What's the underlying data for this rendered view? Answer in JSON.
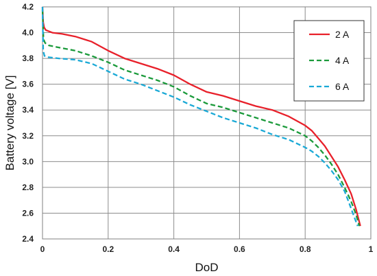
{
  "chart_data": {
    "type": "line",
    "xlabel": "DoD",
    "ylabel": "Battery voltage [V]",
    "xlim": [
      0,
      1
    ],
    "ylim": [
      2.4,
      4.2
    ],
    "x_ticks": [
      "0",
      "0.2",
      "0.4",
      "0.6",
      "0.8",
      "1"
    ],
    "y_ticks": [
      "2.4",
      "2.6",
      "2.8",
      "3.0",
      "3.2",
      "3.4",
      "3.6",
      "3.8",
      "4.0",
      "4.2"
    ],
    "grid": true,
    "legend_position": "top-right",
    "series": [
      {
        "name": "2 A",
        "color": "#e8202a",
        "dash": "solid",
        "points": [
          [
            0.0,
            4.2
          ],
          [
            0.002,
            4.08
          ],
          [
            0.005,
            4.04
          ],
          [
            0.01,
            4.02
          ],
          [
            0.03,
            4.0
          ],
          [
            0.06,
            3.99
          ],
          [
            0.1,
            3.97
          ],
          [
            0.15,
            3.93
          ],
          [
            0.2,
            3.86
          ],
          [
            0.25,
            3.8
          ],
          [
            0.3,
            3.76
          ],
          [
            0.35,
            3.72
          ],
          [
            0.4,
            3.67
          ],
          [
            0.45,
            3.6
          ],
          [
            0.5,
            3.54
          ],
          [
            0.55,
            3.51
          ],
          [
            0.6,
            3.47
          ],
          [
            0.65,
            3.43
          ],
          [
            0.7,
            3.4
          ],
          [
            0.75,
            3.35
          ],
          [
            0.8,
            3.28
          ],
          [
            0.82,
            3.24
          ],
          [
            0.84,
            3.18
          ],
          [
            0.86,
            3.12
          ],
          [
            0.88,
            3.04
          ],
          [
            0.9,
            2.96
          ],
          [
            0.92,
            2.86
          ],
          [
            0.94,
            2.75
          ],
          [
            0.955,
            2.63
          ],
          [
            0.968,
            2.5
          ]
        ]
      },
      {
        "name": "4 A",
        "color": "#1a9a3a",
        "dash": "dashed",
        "points": [
          [
            0.0,
            4.18
          ],
          [
            0.003,
            3.95
          ],
          [
            0.008,
            3.92
          ],
          [
            0.02,
            3.9
          ],
          [
            0.06,
            3.88
          ],
          [
            0.1,
            3.86
          ],
          [
            0.15,
            3.82
          ],
          [
            0.2,
            3.77
          ],
          [
            0.25,
            3.71
          ],
          [
            0.3,
            3.67
          ],
          [
            0.35,
            3.63
          ],
          [
            0.4,
            3.58
          ],
          [
            0.45,
            3.51
          ],
          [
            0.5,
            3.45
          ],
          [
            0.55,
            3.42
          ],
          [
            0.6,
            3.38
          ],
          [
            0.65,
            3.34
          ],
          [
            0.7,
            3.3
          ],
          [
            0.75,
            3.26
          ],
          [
            0.8,
            3.2
          ],
          [
            0.82,
            3.16
          ],
          [
            0.84,
            3.11
          ],
          [
            0.86,
            3.05
          ],
          [
            0.88,
            2.98
          ],
          [
            0.9,
            2.9
          ],
          [
            0.92,
            2.8
          ],
          [
            0.94,
            2.69
          ],
          [
            0.955,
            2.59
          ],
          [
            0.965,
            2.5
          ]
        ]
      },
      {
        "name": "6 A",
        "color": "#1aa9d6",
        "dash": "dashed",
        "points": [
          [
            0.0,
            4.2
          ],
          [
            0.002,
            3.86
          ],
          [
            0.006,
            3.82
          ],
          [
            0.015,
            3.81
          ],
          [
            0.05,
            3.8
          ],
          [
            0.1,
            3.79
          ],
          [
            0.15,
            3.76
          ],
          [
            0.2,
            3.7
          ],
          [
            0.25,
            3.64
          ],
          [
            0.3,
            3.6
          ],
          [
            0.35,
            3.55
          ],
          [
            0.4,
            3.5
          ],
          [
            0.45,
            3.44
          ],
          [
            0.5,
            3.39
          ],
          [
            0.55,
            3.34
          ],
          [
            0.6,
            3.3
          ],
          [
            0.65,
            3.26
          ],
          [
            0.7,
            3.21
          ],
          [
            0.75,
            3.17
          ],
          [
            0.8,
            3.11
          ],
          [
            0.82,
            3.08
          ],
          [
            0.84,
            3.04
          ],
          [
            0.86,
            2.99
          ],
          [
            0.88,
            2.93
          ],
          [
            0.9,
            2.86
          ],
          [
            0.92,
            2.77
          ],
          [
            0.935,
            2.67
          ],
          [
            0.948,
            2.58
          ],
          [
            0.96,
            2.5
          ]
        ]
      }
    ]
  }
}
